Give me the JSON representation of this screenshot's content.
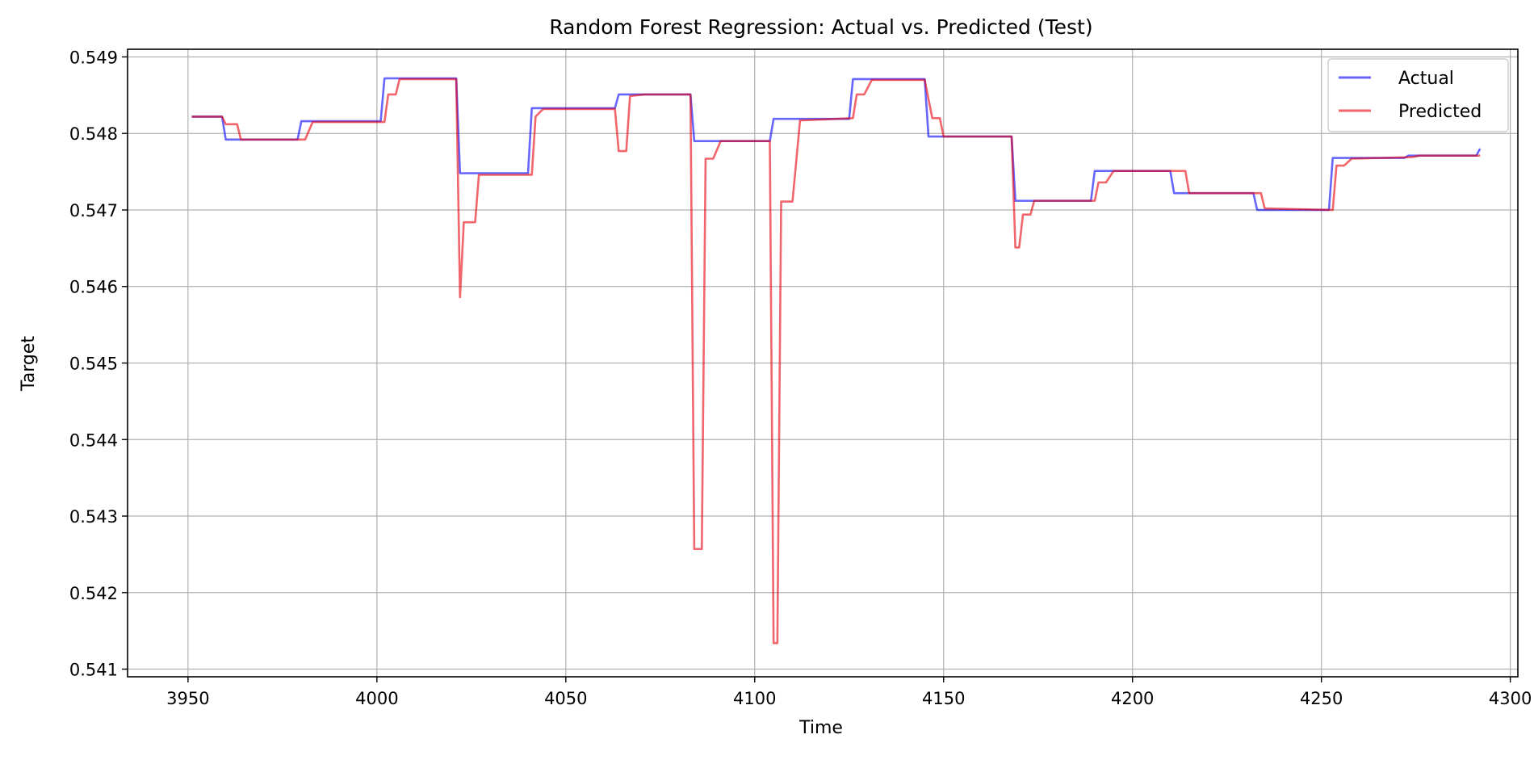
{
  "chart_data": {
    "type": "line",
    "title": "Random Forest Regression: Actual vs. Predicted (Test)",
    "xlabel": "Time",
    "ylabel": "Target",
    "xlim": [
      3934,
      4302
    ],
    "ylim": [
      0.5409,
      0.5491
    ],
    "xticks": [
      3950,
      4000,
      4050,
      4100,
      4150,
      4200,
      4250,
      4300
    ],
    "xtick_labels": [
      "3950",
      "4000",
      "4050",
      "4100",
      "4150",
      "4200",
      "4250",
      "4300"
    ],
    "yticks": [
      0.541,
      0.542,
      0.543,
      0.544,
      0.545,
      0.546,
      0.547,
      0.548,
      0.549
    ],
    "ytick_labels": [
      "0.541",
      "0.542",
      "0.543",
      "0.544",
      "0.545",
      "0.546",
      "0.547",
      "0.548",
      "0.549"
    ],
    "grid": true,
    "legend_position": "top-right",
    "series": [
      {
        "name": "Actual",
        "color": "#0000ff",
        "points": [
          [
            3951,
            0.54822
          ],
          [
            3959,
            0.54822
          ],
          [
            3960,
            0.54792
          ],
          [
            3979,
            0.54792
          ],
          [
            3980,
            0.54816
          ],
          [
            4001,
            0.54816
          ],
          [
            4002,
            0.54872
          ],
          [
            4021,
            0.54872
          ],
          [
            4022,
            0.54748
          ],
          [
            4040,
            0.54748
          ],
          [
            4041,
            0.54833
          ],
          [
            4063,
            0.54833
          ],
          [
            4064,
            0.54851
          ],
          [
            4083,
            0.54851
          ],
          [
            4084,
            0.5479
          ],
          [
            4104,
            0.5479
          ],
          [
            4105,
            0.54819
          ],
          [
            4125,
            0.54819
          ],
          [
            4126,
            0.54871
          ],
          [
            4145,
            0.54871
          ],
          [
            4146,
            0.54796
          ],
          [
            4168,
            0.54796
          ],
          [
            4169,
            0.54712
          ],
          [
            4189,
            0.54712
          ],
          [
            4190,
            0.54751
          ],
          [
            4210,
            0.54751
          ],
          [
            4211,
            0.54722
          ],
          [
            4232,
            0.54722
          ],
          [
            4233,
            0.547
          ],
          [
            4252,
            0.547
          ],
          [
            4253,
            0.54768
          ],
          [
            4272,
            0.54768
          ],
          [
            4273,
            0.54771
          ],
          [
            4291,
            0.54771
          ],
          [
            4292,
            0.5478
          ]
        ]
      },
      {
        "name": "Predicted",
        "color": "#e8000b",
        "points": [
          [
            3951,
            0.54822
          ],
          [
            3959,
            0.54822
          ],
          [
            3960,
            0.54812
          ],
          [
            3963,
            0.54812
          ],
          [
            3964,
            0.54792
          ],
          [
            3981,
            0.54792
          ],
          [
            3983,
            0.54815
          ],
          [
            4002,
            0.54815
          ],
          [
            4003,
            0.54851
          ],
          [
            4005,
            0.54851
          ],
          [
            4006,
            0.54871
          ],
          [
            4021,
            0.54871
          ],
          [
            4022,
            0.54586
          ],
          [
            4023,
            0.54684
          ],
          [
            4026,
            0.54684
          ],
          [
            4027,
            0.54746
          ],
          [
            4041,
            0.54746
          ],
          [
            4042,
            0.54822
          ],
          [
            4044,
            0.54832
          ],
          [
            4063,
            0.54832
          ],
          [
            4064,
            0.54777
          ],
          [
            4066,
            0.54777
          ],
          [
            4067,
            0.54849
          ],
          [
            4071,
            0.54851
          ],
          [
            4083,
            0.54851
          ],
          [
            4084,
            0.54257
          ],
          [
            4086,
            0.54257
          ],
          [
            4087,
            0.54767
          ],
          [
            4089,
            0.54767
          ],
          [
            4091,
            0.5479
          ],
          [
            4104,
            0.5479
          ],
          [
            4105,
            0.54134
          ],
          [
            4106,
            0.54134
          ],
          [
            4107,
            0.54711
          ],
          [
            4110,
            0.54711
          ],
          [
            4112,
            0.54817
          ],
          [
            4126,
            0.5482
          ],
          [
            4127,
            0.54851
          ],
          [
            4129,
            0.54851
          ],
          [
            4131,
            0.5487
          ],
          [
            4145,
            0.5487
          ],
          [
            4147,
            0.5482
          ],
          [
            4149,
            0.5482
          ],
          [
            4150,
            0.54796
          ],
          [
            4168,
            0.54796
          ],
          [
            4169,
            0.54651
          ],
          [
            4170,
            0.54651
          ],
          [
            4171,
            0.54694
          ],
          [
            4173,
            0.54694
          ],
          [
            4174,
            0.54712
          ],
          [
            4190,
            0.54712
          ],
          [
            4191,
            0.54736
          ],
          [
            4193,
            0.54736
          ],
          [
            4195,
            0.54751
          ],
          [
            4214,
            0.54751
          ],
          [
            4215,
            0.54722
          ],
          [
            4234,
            0.54722
          ],
          [
            4235,
            0.54702
          ],
          [
            4253,
            0.547
          ],
          [
            4254,
            0.54758
          ],
          [
            4256,
            0.54758
          ],
          [
            4258,
            0.54767
          ],
          [
            4274,
            0.54769
          ],
          [
            4276,
            0.54771
          ],
          [
            4292,
            0.54771
          ]
        ]
      }
    ]
  }
}
